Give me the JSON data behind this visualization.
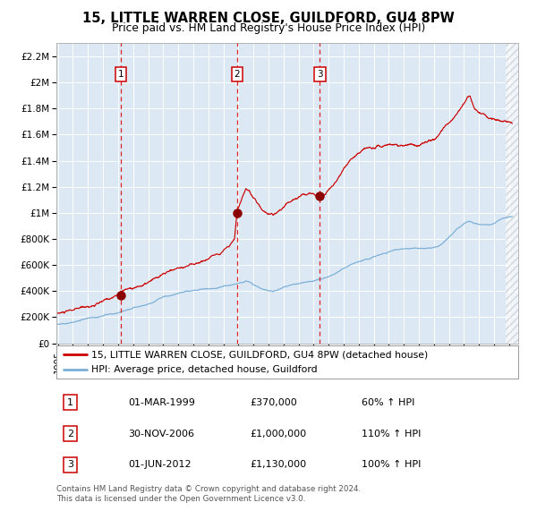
{
  "title": "15, LITTLE WARREN CLOSE, GUILDFORD, GU4 8PW",
  "subtitle": "Price paid vs. HM Land Registry's House Price Index (HPI)",
  "background_color": "#dce9f5",
  "red_line_color": "#cc0000",
  "blue_line_color": "#7aaed6",
  "legend_line1": "15, LITTLE WARREN CLOSE, GUILDFORD, GU4 8PW (detached house)",
  "legend_line2": "HPI: Average price, detached house, Guildford",
  "transactions": [
    {
      "label": "1",
      "x_year": 1999.17,
      "price": 370000
    },
    {
      "label": "2",
      "x_year": 2006.92,
      "price": 1000000
    },
    {
      "label": "3",
      "x_year": 2012.42,
      "price": 1130000
    }
  ],
  "table_rows": [
    [
      "1",
      "01-MAR-1999",
      "£370,000",
      "60% ↑ HPI"
    ],
    [
      "2",
      "30-NOV-2006",
      "£1,000,000",
      "110% ↑ HPI"
    ],
    [
      "3",
      "01-JUN-2012",
      "£1,130,000",
      "100% ↑ HPI"
    ]
  ],
  "footer": "Contains HM Land Registry data © Crown copyright and database right 2024.\nThis data is licensed under the Open Government Licence v3.0.",
  "ylim": [
    0,
    2300000
  ],
  "yticks": [
    0,
    200000,
    400000,
    600000,
    800000,
    1000000,
    1200000,
    1400000,
    1600000,
    1800000,
    2000000,
    2200000
  ],
  "ytick_labels": [
    "£0",
    "£200K",
    "£400K",
    "£600K",
    "£800K",
    "£1M",
    "£1.2M",
    "£1.4M",
    "£1.6M",
    "£1.8M",
    "£2M",
    "£2.2M"
  ],
  "xlim_start": 1994.9,
  "xlim_end": 2025.6,
  "red_ctrl": [
    [
      1995.0,
      228000
    ],
    [
      1995.5,
      235000
    ],
    [
      1996.0,
      242000
    ],
    [
      1996.5,
      252000
    ],
    [
      1997.0,
      262000
    ],
    [
      1997.5,
      278000
    ],
    [
      1998.0,
      295000
    ],
    [
      1998.5,
      318000
    ],
    [
      1999.0,
      340000
    ],
    [
      1999.17,
      370000
    ],
    [
      1999.5,
      385000
    ],
    [
      2000.0,
      405000
    ],
    [
      2000.5,
      420000
    ],
    [
      2001.0,
      440000
    ],
    [
      2001.5,
      462000
    ],
    [
      2002.0,
      485000
    ],
    [
      2002.5,
      510000
    ],
    [
      2003.0,
      530000
    ],
    [
      2003.5,
      548000
    ],
    [
      2004.0,
      565000
    ],
    [
      2004.5,
      585000
    ],
    [
      2005.0,
      610000
    ],
    [
      2005.5,
      645000
    ],
    [
      2006.0,
      690000
    ],
    [
      2006.5,
      740000
    ],
    [
      2006.75,
      790000
    ],
    [
      2006.92,
      1000000
    ],
    [
      2007.1,
      1050000
    ],
    [
      2007.3,
      1100000
    ],
    [
      2007.5,
      1140000
    ],
    [
      2007.7,
      1120000
    ],
    [
      2008.0,
      1060000
    ],
    [
      2008.5,
      990000
    ],
    [
      2009.0,
      950000
    ],
    [
      2009.3,
      940000
    ],
    [
      2009.5,
      960000
    ],
    [
      2010.0,
      1010000
    ],
    [
      2010.5,
      1060000
    ],
    [
      2011.0,
      1100000
    ],
    [
      2011.5,
      1140000
    ],
    [
      2011.8,
      1160000
    ],
    [
      2012.0,
      1150000
    ],
    [
      2012.2,
      1140000
    ],
    [
      2012.42,
      1130000
    ],
    [
      2012.7,
      1150000
    ],
    [
      2013.0,
      1200000
    ],
    [
      2013.5,
      1270000
    ],
    [
      2014.0,
      1360000
    ],
    [
      2014.5,
      1440000
    ],
    [
      2015.0,
      1490000
    ],
    [
      2015.3,
      1510000
    ],
    [
      2015.5,
      1520000
    ],
    [
      2016.0,
      1540000
    ],
    [
      2016.3,
      1560000
    ],
    [
      2016.5,
      1545000
    ],
    [
      2017.0,
      1550000
    ],
    [
      2017.5,
      1545000
    ],
    [
      2018.0,
      1535000
    ],
    [
      2018.5,
      1530000
    ],
    [
      2019.0,
      1525000
    ],
    [
      2019.5,
      1540000
    ],
    [
      2020.0,
      1560000
    ],
    [
      2020.5,
      1610000
    ],
    [
      2021.0,
      1680000
    ],
    [
      2021.5,
      1760000
    ],
    [
      2022.0,
      1840000
    ],
    [
      2022.2,
      1890000
    ],
    [
      2022.4,
      1910000
    ],
    [
      2022.5,
      1870000
    ],
    [
      2022.7,
      1820000
    ],
    [
      2023.0,
      1790000
    ],
    [
      2023.3,
      1770000
    ],
    [
      2023.5,
      1760000
    ],
    [
      2023.7,
      1740000
    ],
    [
      2024.0,
      1730000
    ],
    [
      2024.3,
      1720000
    ],
    [
      2024.5,
      1710000
    ],
    [
      2024.7,
      1700000
    ],
    [
      2025.0,
      1690000
    ],
    [
      2025.2,
      1680000
    ]
  ],
  "blue_ctrl": [
    [
      1995.0,
      145000
    ],
    [
      1995.5,
      152000
    ],
    [
      1996.0,
      160000
    ],
    [
      1996.5,
      170000
    ],
    [
      1997.0,
      182000
    ],
    [
      1997.5,
      196000
    ],
    [
      1998.0,
      210000
    ],
    [
      1998.5,
      222000
    ],
    [
      1999.0,
      232000
    ],
    [
      1999.5,
      248000
    ],
    [
      2000.0,
      268000
    ],
    [
      2000.5,
      285000
    ],
    [
      2001.0,
      302000
    ],
    [
      2001.5,
      322000
    ],
    [
      2002.0,
      348000
    ],
    [
      2002.5,
      368000
    ],
    [
      2003.0,
      382000
    ],
    [
      2003.5,
      390000
    ],
    [
      2004.0,
      396000
    ],
    [
      2004.5,
      400000
    ],
    [
      2005.0,
      405000
    ],
    [
      2005.5,
      413000
    ],
    [
      2006.0,
      425000
    ],
    [
      2006.5,
      445000
    ],
    [
      2007.0,
      468000
    ],
    [
      2007.3,
      480000
    ],
    [
      2007.5,
      490000
    ],
    [
      2007.8,
      485000
    ],
    [
      2008.0,
      472000
    ],
    [
      2008.5,
      450000
    ],
    [
      2009.0,
      430000
    ],
    [
      2009.3,
      422000
    ],
    [
      2009.5,
      428000
    ],
    [
      2010.0,
      445000
    ],
    [
      2010.5,
      462000
    ],
    [
      2011.0,
      475000
    ],
    [
      2011.5,
      490000
    ],
    [
      2012.0,
      500000
    ],
    [
      2012.5,
      515000
    ],
    [
      2013.0,
      535000
    ],
    [
      2013.5,
      560000
    ],
    [
      2014.0,
      598000
    ],
    [
      2014.5,
      635000
    ],
    [
      2015.0,
      660000
    ],
    [
      2015.5,
      678000
    ],
    [
      2016.0,
      695000
    ],
    [
      2016.5,
      712000
    ],
    [
      2017.0,
      728000
    ],
    [
      2017.5,
      738000
    ],
    [
      2018.0,
      742000
    ],
    [
      2018.5,
      745000
    ],
    [
      2019.0,
      742000
    ],
    [
      2019.5,
      748000
    ],
    [
      2020.0,
      758000
    ],
    [
      2020.5,
      790000
    ],
    [
      2021.0,
      840000
    ],
    [
      2021.5,
      900000
    ],
    [
      2022.0,
      950000
    ],
    [
      2022.3,
      968000
    ],
    [
      2022.5,
      962000
    ],
    [
      2022.7,
      950000
    ],
    [
      2023.0,
      942000
    ],
    [
      2023.3,
      938000
    ],
    [
      2023.5,
      936000
    ],
    [
      2023.7,
      938000
    ],
    [
      2024.0,
      945000
    ],
    [
      2024.3,
      958000
    ],
    [
      2024.5,
      968000
    ],
    [
      2024.7,
      978000
    ],
    [
      2025.0,
      990000
    ],
    [
      2025.2,
      998000
    ]
  ]
}
